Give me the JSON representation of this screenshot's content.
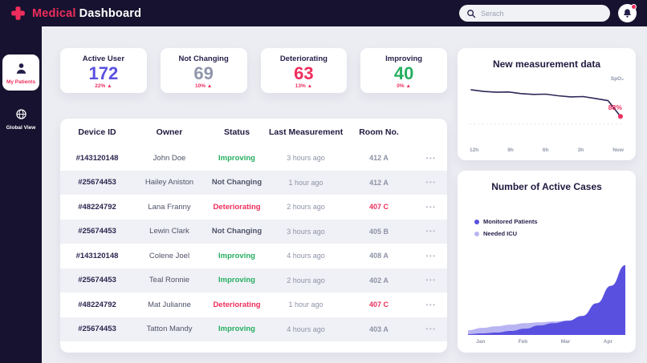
{
  "colors": {
    "accent": "#ee2d5d",
    "dark": "#17122f",
    "purple": "#5a50e0",
    "green": "#27ae60",
    "gray_value": "#8f95aa"
  },
  "header": {
    "brand_primary": "Medical",
    "brand_secondary": "Dashboard",
    "search_placeholder": "Serach"
  },
  "sidebar": {
    "items": [
      {
        "label": "My Patients",
        "active": true
      },
      {
        "label": "Global View",
        "active": false
      }
    ]
  },
  "stats": [
    {
      "title": "Active User",
      "value": "172",
      "change": "22% ▲",
      "color": "#5a50e0"
    },
    {
      "title": "Not Changing",
      "value": "69",
      "change": "10% ▲",
      "color": "#8f95aa"
    },
    {
      "title": "Deteriorating",
      "value": "63",
      "change": "13% ▲",
      "color": "#ee2d5d"
    },
    {
      "title": "Improving",
      "value": "40",
      "change": "0% ▲",
      "color": "#27ae60"
    }
  ],
  "table": {
    "headers": [
      "Device ID",
      "Owner",
      "Status",
      "Last Measurement",
      "Room No."
    ],
    "menu_glyph": "•••",
    "status_colors": {
      "improving": "#27ae60",
      "neutral": "#4e5268",
      "deteriorating": "#ee2d5d"
    },
    "rows": [
      {
        "device": "#143120148",
        "owner": "John Doe",
        "status": "Improving",
        "status_type": "improving",
        "last": "3 hours ago",
        "room": "412 A",
        "room_alert": false
      },
      {
        "device": "#25674453",
        "owner": "Hailey Aniston",
        "status": "Not Changing",
        "status_type": "neutral",
        "last": "1 hour ago",
        "room": "412 A",
        "room_alert": false
      },
      {
        "device": "#48224792",
        "owner": "Lana Franny",
        "status": "Deteriorating",
        "status_type": "deteriorating",
        "last": "2 hours ago",
        "room": "407 C",
        "room_alert": true
      },
      {
        "device": "#25674453",
        "owner": "Lewin Clark",
        "status": "Not Changing",
        "status_type": "neutral",
        "last": "3 hours ago",
        "room": "405 B",
        "room_alert": false
      },
      {
        "device": "#143120148",
        "owner": "Colene Joel",
        "status": "Improving",
        "status_type": "improving",
        "last": "4 hours ago",
        "room": "408 A",
        "room_alert": false
      },
      {
        "device": "#25674453",
        "owner": "Teal Ronnie",
        "status": "Improving",
        "status_type": "improving",
        "last": "2 hours ago",
        "room": "402 A",
        "room_alert": false
      },
      {
        "device": "#48224792",
        "owner": "Mat Julianne",
        "status": "Deteriorating",
        "status_type": "deteriorating",
        "last": "1 hour ago",
        "room": "407 C",
        "room_alert": true
      },
      {
        "device": "#25674453",
        "owner": "Tatton Mandy",
        "status": "Improving",
        "status_type": "improving",
        "last": "4 hours ago",
        "room": "403 A",
        "room_alert": false
      }
    ]
  },
  "charts": {
    "measurement": {
      "type": "line",
      "title": "New measurement data",
      "unit_label": "SpO₂",
      "highlight_value": "88%",
      "x_labels": [
        "12h",
        "9h",
        "6h",
        "3h",
        "Now"
      ],
      "values": [
        97.8,
        97.2,
        96.9,
        97.0,
        96.4,
        96.1,
        96.2,
        95.6,
        95.2,
        95.3,
        94.6,
        93.8,
        88
      ],
      "y_range": [
        86,
        99
      ],
      "line_color": "#2b2857",
      "marker_color": "#ee2d5d"
    },
    "cases": {
      "type": "area",
      "title": "Number of Active Cases",
      "x_labels": [
        "Jan",
        "Feb",
        "Mar",
        "Apr"
      ],
      "y_max": 100,
      "series": [
        {
          "name": "Monitored Patients",
          "color": "#5a50e0",
          "values": [
            1,
            2,
            3,
            5,
            8,
            12,
            15,
            18,
            24,
            40,
            62,
            88
          ]
        },
        {
          "name": "Needed ICU",
          "color": "#b9b5f2",
          "values": [
            6,
            9,
            11,
            13,
            15,
            16,
            17,
            18,
            20,
            22,
            25,
            28
          ]
        }
      ]
    }
  }
}
